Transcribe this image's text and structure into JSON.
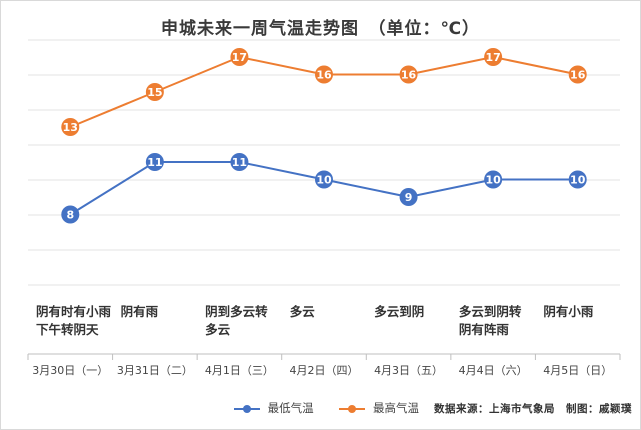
{
  "chart_data": {
    "type": "line",
    "title": "申城未来一周气温走势图　（单位：℃）",
    "categories": [
      "3月30日（一）",
      "3月31日（二）",
      "4月1日（三）",
      "4月2日（四）",
      "4月3日（五）",
      "4月4日（六）",
      "4月5日（日）"
    ],
    "weather": [
      [
        "阴有时有小雨",
        "下午转阴天"
      ],
      [
        "阴有雨"
      ],
      [
        "阴到多云转",
        "多云"
      ],
      [
        "多云"
      ],
      [
        "多云到阴"
      ],
      [
        "多云到阴转",
        "阴有阵雨"
      ],
      [
        "阴有小雨"
      ]
    ],
    "series": [
      {
        "name": "最低气温",
        "color": "#4472c4",
        "values": [
          8,
          11,
          11,
          10,
          9,
          10,
          10
        ]
      },
      {
        "name": "最高气温",
        "color": "#ed7d31",
        "values": [
          13,
          15,
          17,
          16,
          16,
          17,
          16
        ]
      }
    ],
    "xlabel": "",
    "ylabel": "",
    "ylim": [
      5,
      18
    ],
    "grid": true,
    "legend": "bottom-center",
    "source": "数据来源：上海市气象局　制图：戚颖璞"
  }
}
